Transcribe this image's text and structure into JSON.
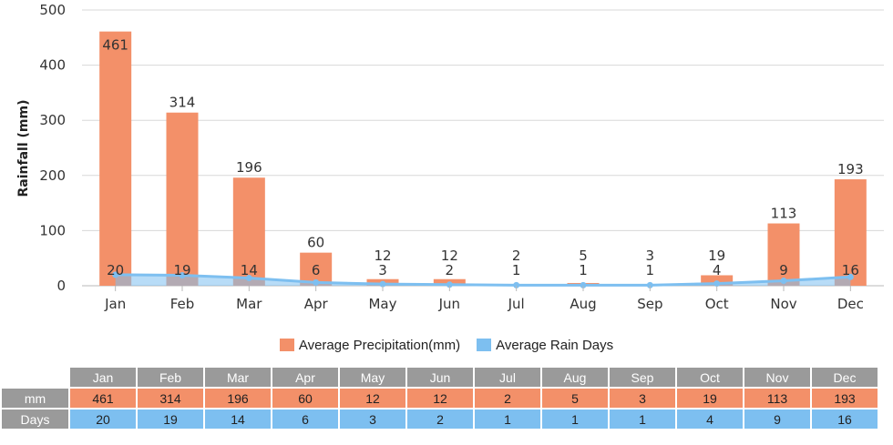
{
  "chart_data": {
    "type": "bar",
    "categories": [
      "Jan",
      "Feb",
      "Mar",
      "Apr",
      "May",
      "Jun",
      "Jul",
      "Aug",
      "Sep",
      "Oct",
      "Nov",
      "Dec"
    ],
    "ylabel": "Rainfall (mm)",
    "ylim": [
      0,
      500
    ],
    "yticks": [
      "0",
      "100",
      "200",
      "300",
      "400",
      "500"
    ],
    "grid": true,
    "legend_position": "bottom",
    "series": [
      {
        "name": "Average Precipitation(mm)",
        "type": "bar",
        "color": "#f39069",
        "values": [
          461,
          314,
          196,
          60,
          12,
          12,
          2,
          5,
          3,
          19,
          113,
          193
        ]
      },
      {
        "name": "Average Rain Days",
        "type": "area",
        "color": "#7dbff0",
        "values": [
          20,
          19,
          14,
          6,
          3,
          2,
          1,
          1,
          1,
          4,
          9,
          16
        ]
      }
    ]
  },
  "table": {
    "row_labels": [
      "mm",
      "Days"
    ]
  }
}
